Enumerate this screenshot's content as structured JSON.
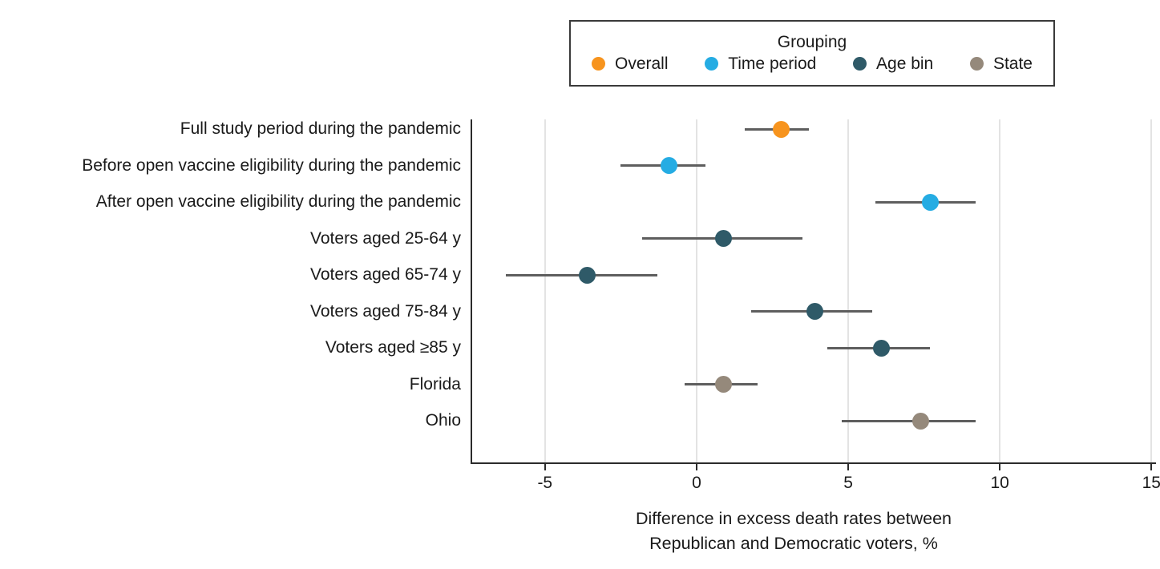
{
  "figure": {
    "legend": {
      "title": "Grouping",
      "items": [
        {
          "label": "Overall",
          "color": "#F7941E",
          "icon": "legend-dot-overall"
        },
        {
          "label": "Time period",
          "color": "#25ACE3",
          "icon": "legend-dot-time-period"
        },
        {
          "label": "Age bin",
          "color": "#2F5A68",
          "icon": "legend-dot-age-bin"
        },
        {
          "label": "State",
          "color": "#95897B",
          "icon": "legend-dot-state"
        }
      ]
    },
    "x_axis_title_line1": "Difference in excess death rates between",
    "x_axis_title_line2": "Republican and Democratic voters, %"
  },
  "chart_data": {
    "type": "scatter",
    "subtype": "forest-plot-dots-with-ci",
    "title": "",
    "xlabel": "Difference in excess death rates between Republican and Democratic voters, %",
    "ylabel": "",
    "xlim": [
      -7.4,
      15.15
    ],
    "xticks": [
      -5,
      0,
      5,
      10,
      15
    ],
    "xtick_labels": [
      "-5",
      "0",
      "5",
      "10",
      "15"
    ],
    "grid": "vertical-gridlines-at-ticks",
    "legend_position": "top-center",
    "legend_title": "Grouping",
    "groups": [
      "Overall",
      "Time period",
      "Age bin",
      "State"
    ],
    "points": [
      {
        "label": "Full study period during the pandemic",
        "group": "Overall",
        "value": 2.8,
        "ci_low": 1.6,
        "ci_high": 3.7
      },
      {
        "label": "Before open vaccine eligibility during the pandemic",
        "group": "Time period",
        "value": -0.9,
        "ci_low": -2.5,
        "ci_high": 0.3
      },
      {
        "label": "After open vaccine eligibility during the pandemic",
        "group": "Time period",
        "value": 7.7,
        "ci_low": 5.9,
        "ci_high": 9.2
      },
      {
        "label": "Voters aged 25-64 y",
        "group": "Age bin",
        "value": 0.9,
        "ci_low": -1.8,
        "ci_high": 3.5
      },
      {
        "label": "Voters aged 65-74 y",
        "group": "Age bin",
        "value": -3.6,
        "ci_low": -6.3,
        "ci_high": -1.3
      },
      {
        "label": "Voters aged 75-84 y",
        "group": "Age bin",
        "value": 3.9,
        "ci_low": 1.8,
        "ci_high": 5.8
      },
      {
        "label": "Voters aged ≥85 y",
        "group": "Age bin",
        "value": 6.1,
        "ci_low": 4.3,
        "ci_high": 7.7
      },
      {
        "label": "Florida",
        "group": "State",
        "value": 0.9,
        "ci_low": -0.4,
        "ci_high": 2.0
      },
      {
        "label": "Ohio",
        "group": "State",
        "value": 7.4,
        "ci_low": 4.8,
        "ci_high": 9.2
      }
    ]
  },
  "colors": {
    "overall": "#F7941E",
    "time_period": "#25ACE3",
    "age_bin": "#2F5A68",
    "state": "#95897B",
    "ci_line": "#5e5e5e",
    "gridline": "#e3e3e3",
    "axis": "#2b2b2b",
    "text": "#1a1a1a"
  }
}
